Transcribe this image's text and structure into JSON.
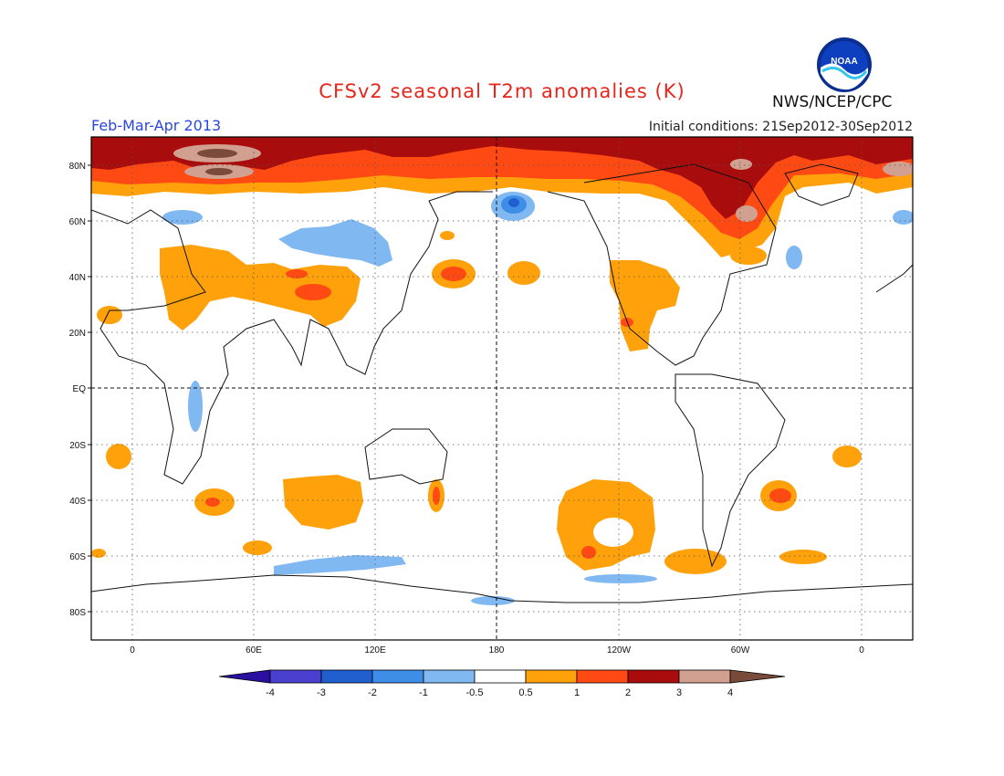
{
  "header": {
    "title": "CFSv2 seasonal T2m anomalies (K)",
    "season": "Feb-Mar-Apr 2013",
    "agency": "NWS/NCEP/CPC",
    "initial_conditions": "Initial conditions: 21Sep2012-30Sep2012",
    "logo_text": "NOAA"
  },
  "axes": {
    "lat_labels": [
      "80N",
      "60N",
      "40N",
      "20N",
      "EQ",
      "20S",
      "40S",
      "60S",
      "80S"
    ],
    "lon_labels": [
      "0",
      "60E",
      "120E",
      "180",
      "120W",
      "60W",
      "0"
    ]
  },
  "colorbar": {
    "tick_labels": [
      "-4",
      "-3",
      "-2",
      "-1",
      "-0.5",
      "0.5",
      "1",
      "2",
      "3",
      "4"
    ],
    "colors": [
      "#2a0fa0",
      "#4a3fcf",
      "#1f5fd0",
      "#3e8ee8",
      "#80b8f2",
      "#ffffff",
      "#ffa10b",
      "#ff4a14",
      "#a80c0c",
      "#d2a090",
      "#7a4a3a"
    ]
  },
  "palette": {
    "ocean_bg": "#ffffff",
    "coast": "#111111",
    "warm_1": "#ffa10b",
    "warm_2": "#ff4a14",
    "warm_3": "#a80c0c",
    "warm_4": "#d2a090",
    "warm_5": "#7a4a3a",
    "cool_1": "#80b8f2",
    "cool_2": "#3e8ee8",
    "cool_3": "#1f5fd0"
  }
}
